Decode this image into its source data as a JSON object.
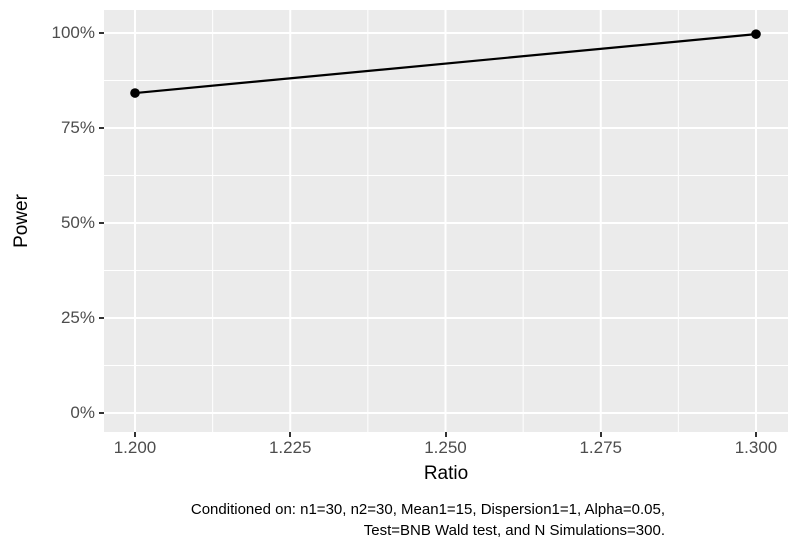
{
  "chart_data": {
    "type": "line",
    "title": "",
    "xlabel": "Ratio",
    "ylabel": "Power",
    "x": [
      1.2,
      1.3
    ],
    "series": [
      {
        "name": "Power",
        "values": [
          0.842,
          0.997
        ]
      }
    ],
    "x_ticks": [
      1.2,
      1.225,
      1.25,
      1.275,
      1.3
    ],
    "x_tick_labels": [
      "1.200",
      "1.225",
      "1.250",
      "1.275",
      "1.300"
    ],
    "y_ticks": [
      0,
      0.25,
      0.5,
      0.75,
      1.0
    ],
    "y_tick_labels": [
      "0%",
      "25%",
      "50%",
      "75%",
      "100%"
    ],
    "xlim": [
      1.195,
      1.305
    ],
    "ylim": [
      -0.053,
      1.053
    ],
    "grid": "major and minor gridlines on, white on grey panel",
    "legend": "none",
    "caption_line1": "Conditioned on: n1=30, n2=30, Mean1=15, Dispersion1=1, Alpha=0.05,",
    "caption_line2": "Test=BNB Wald test, and N Simulations=300.",
    "colors": {
      "panel_background": "#EBEBEB",
      "gridline": "#FFFFFF",
      "line": "#000000",
      "point": "#000000",
      "tick_label": "#4D4D4D",
      "tick_mark": "#333333",
      "axis_title": "#000000",
      "caption_text": "#000000"
    }
  }
}
